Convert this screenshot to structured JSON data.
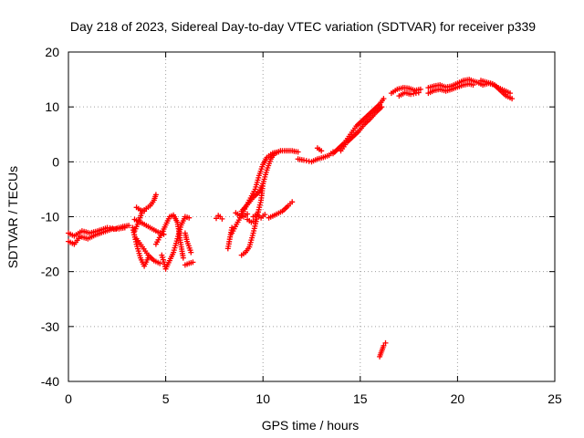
{
  "chart_data": {
    "type": "scatter",
    "title": "Day 218 of 2023, Sidereal Day-to-day VTEC variation (SDTVAR) for receiver p339",
    "xlabel": "GPS time / hours",
    "ylabel": "SDTVAR / TECUs",
    "xlim": [
      0,
      25
    ],
    "ylim": [
      -40,
      20
    ],
    "xticks": [
      0,
      5,
      10,
      15,
      20,
      25
    ],
    "yticks": [
      -40,
      -30,
      -20,
      -10,
      0,
      10,
      20
    ],
    "xtick_labels": [
      "0",
      "5",
      "10",
      "15",
      "20",
      "25"
    ],
    "ytick_labels": [
      "-40",
      "-30",
      "-20",
      "-10",
      "0",
      "10",
      "20"
    ],
    "grid": true,
    "marker": "+",
    "color": "#ff0000",
    "series": [
      {
        "name": "SDTVAR",
        "tracks": [
          [
            [
              0.0,
              -14.5
            ],
            [
              0.3,
              -15.0
            ],
            [
              0.6,
              -13.6
            ],
            [
              1.0,
              -14.0
            ],
            [
              1.4,
              -13.3
            ],
            [
              1.8,
              -12.8
            ],
            [
              2.2,
              -12.3
            ],
            [
              2.6,
              -12.2
            ],
            [
              2.9,
              -12.0
            ]
          ],
          [
            [
              0.0,
              -13.0
            ],
            [
              0.3,
              -13.5
            ],
            [
              0.7,
              -12.6
            ],
            [
              1.1,
              -13.0
            ],
            [
              1.5,
              -12.6
            ],
            [
              2.0,
              -12.0
            ],
            [
              2.4,
              -12.2
            ],
            [
              2.8,
              -11.8
            ],
            [
              3.1,
              -11.6
            ]
          ],
          [
            [
              3.3,
              -12.0
            ],
            [
              3.5,
              -15.0
            ],
            [
              3.7,
              -17.5
            ],
            [
              3.9,
              -19.0
            ],
            [
              4.1,
              -17.5
            ]
          ],
          [
            [
              3.4,
              -12.6
            ],
            [
              3.6,
              -11.0
            ],
            [
              3.8,
              -9.0
            ],
            [
              4.0,
              -8.5
            ],
            [
              4.2,
              -8.0
            ],
            [
              4.4,
              -7.0
            ],
            [
              4.5,
              -6.0
            ]
          ],
          [
            [
              3.5,
              -8.3
            ],
            [
              3.7,
              -8.8
            ],
            [
              3.9,
              -9.0
            ]
          ],
          [
            [
              3.4,
              -10.5
            ],
            [
              3.8,
              -11.2
            ],
            [
              4.2,
              -12.0
            ],
            [
              4.6,
              -12.8
            ],
            [
              4.9,
              -13.2
            ]
          ],
          [
            [
              3.5,
              -14.0
            ],
            [
              3.8,
              -15.5
            ],
            [
              4.1,
              -17.0
            ],
            [
              4.4,
              -18.0
            ],
            [
              4.7,
              -18.5
            ]
          ],
          [
            [
              4.8,
              -17.0
            ],
            [
              5.0,
              -19.5
            ],
            [
              5.2,
              -18.0
            ],
            [
              5.4,
              -16.5
            ],
            [
              5.6,
              -14.0
            ],
            [
              5.8,
              -11.5
            ],
            [
              6.0,
              -10.0
            ],
            [
              6.2,
              -10.2
            ]
          ],
          [
            [
              4.5,
              -15.0
            ],
            [
              4.8,
              -13.0
            ],
            [
              5.0,
              -11.5
            ],
            [
              5.2,
              -10.0
            ],
            [
              5.4,
              -9.7
            ],
            [
              5.6,
              -11.0
            ],
            [
              5.7,
              -13.0
            ],
            [
              5.8,
              -15.5
            ],
            [
              5.9,
              -17.5
            ]
          ],
          [
            [
              6.0,
              -13.0
            ],
            [
              6.1,
              -14.5
            ],
            [
              6.3,
              -16.5
            ]
          ],
          [
            [
              6.0,
              -18.8
            ],
            [
              6.2,
              -18.5
            ],
            [
              6.4,
              -18.3
            ]
          ],
          [
            [
              7.6,
              -10.3
            ],
            [
              7.7,
              -9.8
            ],
            [
              7.8,
              -10.0
            ],
            [
              7.9,
              -10.4
            ]
          ],
          [
            [
              8.2,
              -15.8
            ],
            [
              8.4,
              -12.0
            ]
          ],
          [
            [
              8.6,
              -9.3
            ],
            [
              8.8,
              -9.8
            ],
            [
              9.0,
              -10.0
            ],
            [
              9.2,
              -9.5
            ]
          ],
          [
            [
              8.9,
              -9.0
            ],
            [
              9.2,
              -7.8
            ],
            [
              9.5,
              -6.5
            ],
            [
              9.8,
              -5.5
            ],
            [
              10.0,
              -4.0
            ]
          ],
          [
            [
              8.9,
              -17.0
            ],
            [
              9.1,
              -16.5
            ],
            [
              9.3,
              -15.5
            ],
            [
              9.5,
              -13.0
            ],
            [
              9.7,
              -10.0
            ],
            [
              9.9,
              -7.0
            ],
            [
              10.0,
              -4.0
            ],
            [
              10.2,
              -1.5
            ],
            [
              10.4,
              0.5
            ],
            [
              10.6,
              1.5
            ],
            [
              10.9,
              2.0
            ],
            [
              11.2,
              2.0
            ],
            [
              11.5,
              2.0
            ],
            [
              11.8,
              1.8
            ]
          ],
          [
            [
              8.4,
              -13.0
            ],
            [
              8.7,
              -11.0
            ],
            [
              9.0,
              -9.0
            ],
            [
              9.3,
              -7.0
            ],
            [
              9.6,
              -5.0
            ],
            [
              9.8,
              -2.5
            ],
            [
              10.0,
              -0.5
            ],
            [
              10.2,
              0.8
            ],
            [
              10.5,
              1.6
            ],
            [
              10.8,
              1.8
            ]
          ],
          [
            [
              9.2,
              -10.5
            ],
            [
              9.4,
              -11.0
            ],
            [
              9.6,
              -10.8
            ]
          ],
          [
            [
              9.5,
              -10.0
            ],
            [
              9.7,
              -9.5
            ],
            [
              9.9,
              -10.2
            ],
            [
              10.1,
              -9.6
            ]
          ],
          [
            [
              10.3,
              -10.2
            ],
            [
              10.6,
              -9.7
            ],
            [
              11.0,
              -9.0
            ],
            [
              11.3,
              -8.0
            ],
            [
              11.5,
              -7.3
            ]
          ],
          [
            [
              11.8,
              0.5
            ],
            [
              12.1,
              0.3
            ],
            [
              12.5,
              0.0
            ],
            [
              12.8,
              0.5
            ],
            [
              13.1,
              0.8
            ],
            [
              13.4,
              1.2
            ],
            [
              13.6,
              1.8
            ]
          ],
          [
            [
              12.8,
              2.5
            ],
            [
              13.0,
              2.0
            ]
          ],
          [
            [
              13.6,
              1.5
            ],
            [
              13.9,
              2.5
            ],
            [
              14.2,
              3.5
            ],
            [
              14.5,
              5.0
            ],
            [
              14.8,
              6.5
            ],
            [
              15.1,
              7.5
            ],
            [
              15.4,
              8.5
            ],
            [
              15.7,
              9.5
            ],
            [
              16.0,
              10.5
            ],
            [
              16.2,
              11.5
            ]
          ],
          [
            [
              14.0,
              2.0
            ],
            [
              14.3,
              3.5
            ],
            [
              14.6,
              4.5
            ],
            [
              14.9,
              5.5
            ],
            [
              15.2,
              6.8
            ],
            [
              15.5,
              7.8
            ],
            [
              15.8,
              9.0
            ],
            [
              16.1,
              10.0
            ]
          ],
          [
            [
              16.6,
              12.5
            ],
            [
              16.9,
              13.2
            ],
            [
              17.2,
              13.5
            ],
            [
              17.5,
              13.4
            ],
            [
              17.8,
              13.0
            ],
            [
              18.1,
              13.2
            ]
          ],
          [
            [
              17.0,
              12.0
            ],
            [
              17.3,
              12.6
            ],
            [
              17.6,
              12.3
            ],
            [
              18.0,
              12.6
            ]
          ],
          [
            [
              18.5,
              13.5
            ],
            [
              18.8,
              13.8
            ],
            [
              19.1,
              14.0
            ],
            [
              19.4,
              13.6
            ],
            [
              19.7,
              13.8
            ],
            [
              20.0,
              14.3
            ],
            [
              20.3,
              14.8
            ],
            [
              20.6,
              15.0
            ],
            [
              20.9,
              14.6
            ]
          ],
          [
            [
              18.5,
              12.5
            ],
            [
              18.8,
              13.0
            ],
            [
              19.1,
              13.2
            ],
            [
              19.4,
              12.9
            ],
            [
              19.7,
              13.2
            ],
            [
              20.0,
              13.6
            ],
            [
              20.3,
              14.0
            ],
            [
              20.6,
              14.2
            ],
            [
              20.8,
              14.0
            ]
          ],
          [
            [
              21.0,
              14.5
            ],
            [
              21.3,
              14.0
            ],
            [
              21.6,
              14.3
            ],
            [
              21.9,
              14.0
            ],
            [
              22.2,
              13.0
            ],
            [
              22.5,
              12.0
            ],
            [
              22.8,
              11.5
            ]
          ],
          [
            [
              21.2,
              14.8
            ],
            [
              21.5,
              14.5
            ],
            [
              21.8,
              14.2
            ],
            [
              22.1,
              13.5
            ],
            [
              22.4,
              13.0
            ],
            [
              22.7,
              12.5
            ]
          ],
          [
            [
              16.0,
              -35.5
            ],
            [
              16.1,
              -34.5
            ],
            [
              16.2,
              -33.5
            ],
            [
              16.3,
              -33.0
            ]
          ]
        ]
      }
    ]
  }
}
